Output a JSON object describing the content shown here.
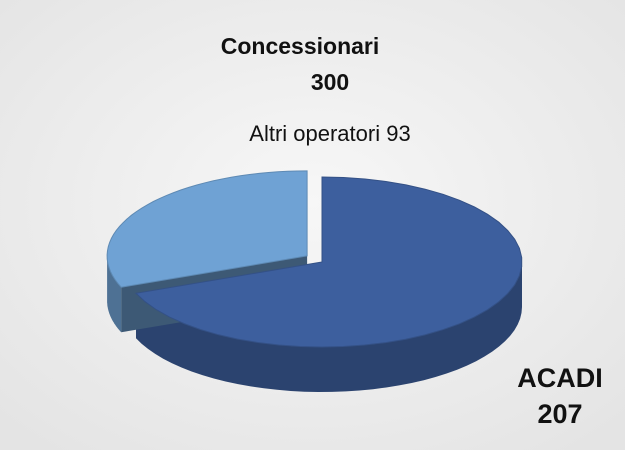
{
  "chart_data": {
    "type": "pie",
    "title": "Concessionari",
    "total": 300,
    "categories": [
      "ACADI",
      "Altri operatori"
    ],
    "values": [
      207,
      93
    ],
    "colors": [
      "#3d5f9e",
      "#6fa2d4"
    ]
  }
}
